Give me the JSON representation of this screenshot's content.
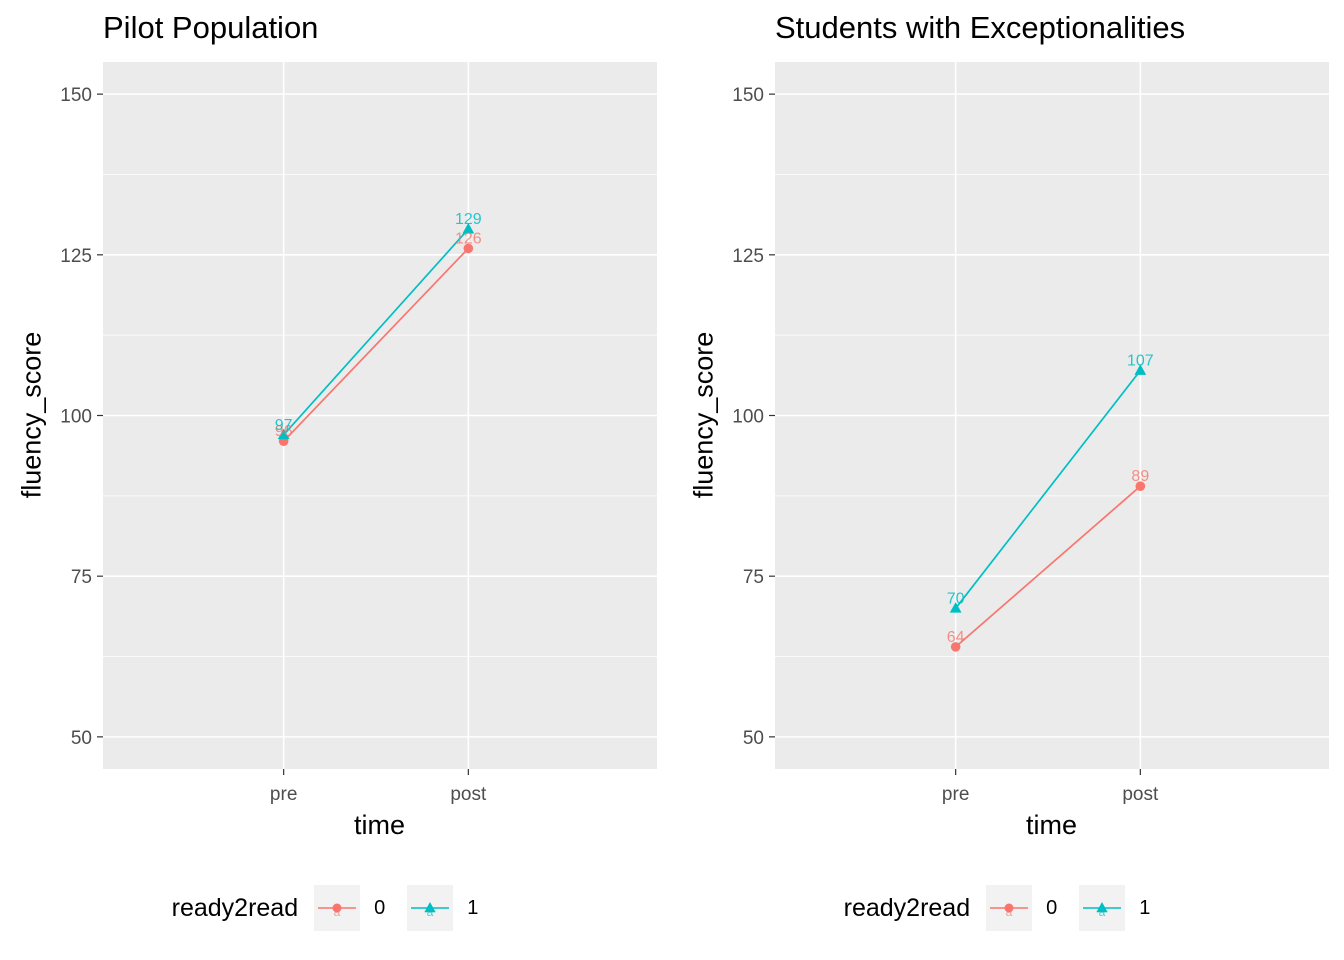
{
  "colors": {
    "series_0": "#F8766D",
    "series_1": "#00BFC4",
    "panel_bg": "#EBEBEB",
    "grid": "#FFFFFF",
    "tick_text": "#4D4D4D"
  },
  "legend": {
    "title": "ready2read",
    "items": [
      {
        "label": "0",
        "shape": "circle"
      },
      {
        "label": "1",
        "shape": "triangle"
      }
    ]
  },
  "chart_data": [
    {
      "type": "line",
      "title": "Pilot Population",
      "xlabel": "time",
      "ylabel": "fluency_score",
      "categories": [
        "pre",
        "post"
      ],
      "ylim": [
        45,
        155
      ],
      "yticks": [
        50,
        75,
        100,
        125,
        150
      ],
      "grid": true,
      "legend_position": "bottom",
      "series": [
        {
          "name": "0",
          "values": [
            96,
            126
          ],
          "labels": [
            "96",
            "126"
          ]
        },
        {
          "name": "1",
          "values": [
            97,
            129
          ],
          "labels": [
            "97",
            "129"
          ]
        }
      ]
    },
    {
      "type": "line",
      "title": "Students with Exceptionalities",
      "xlabel": "time",
      "ylabel": "fluency_score",
      "categories": [
        "pre",
        "post"
      ],
      "ylim": [
        45,
        155
      ],
      "yticks": [
        50,
        75,
        100,
        125,
        150
      ],
      "grid": true,
      "legend_position": "bottom",
      "series": [
        {
          "name": "0",
          "values": [
            64,
            89
          ],
          "labels": [
            "64",
            "89"
          ]
        },
        {
          "name": "1",
          "values": [
            70,
            107
          ],
          "labels": [
            "70",
            "107"
          ]
        }
      ]
    }
  ]
}
